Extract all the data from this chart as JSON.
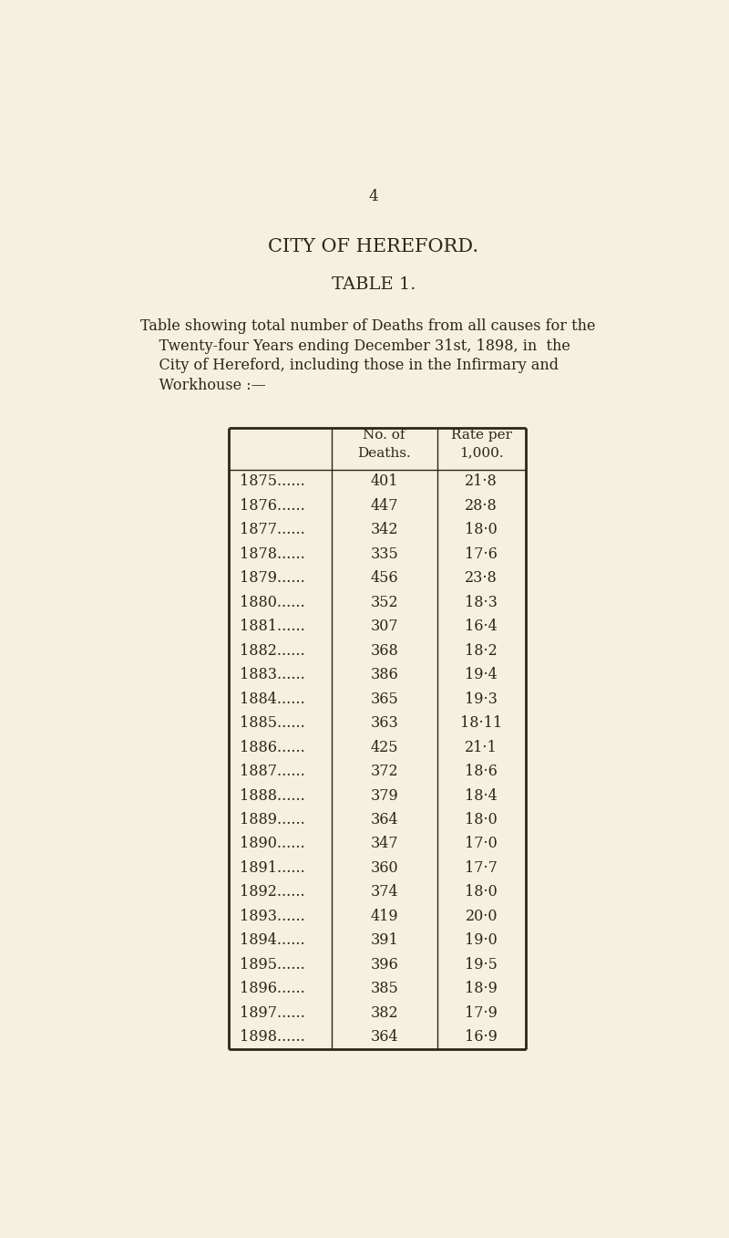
{
  "page_number": "4",
  "title1": "CITY OF HEREFORD.",
  "title2": "TABLE 1.",
  "desc_lines": [
    "Table showing total number of Deaths from all causes for the",
    "    Twenty-four Years ending December 31st, 1898, in  the",
    "    City of Hereford, including those in the Infirmary and",
    "    Workhouse :—"
  ],
  "col_header1": "No. of\nDeaths.",
  "col_header2": "Rate per\n1,000.",
  "rows": [
    [
      "1875......",
      "401",
      "21·8"
    ],
    [
      "1876......",
      "447",
      "28·8"
    ],
    [
      "1877......",
      "342",
      "18·0"
    ],
    [
      "1878......",
      "335",
      "17·6"
    ],
    [
      "1879......",
      "456",
      "23·8"
    ],
    [
      "1880......",
      "352",
      "18·3"
    ],
    [
      "1881......",
      "307",
      "16·4"
    ],
    [
      "1882......",
      "368",
      "18·2"
    ],
    [
      "1883......",
      "386",
      "19·4"
    ],
    [
      "1884......",
      "365",
      "19·3"
    ],
    [
      "1885......",
      "363",
      "18·11"
    ],
    [
      "1886......",
      "425",
      "21·1"
    ],
    [
      "1887......",
      "372",
      "18·6"
    ],
    [
      "1888......",
      "379",
      "18·4"
    ],
    [
      "1889......",
      "364",
      "18·0"
    ],
    [
      "1890......",
      "347",
      "17·0"
    ],
    [
      "1891......",
      "360",
      "17·7"
    ],
    [
      "1892......",
      "374",
      "18·0"
    ],
    [
      "1893......",
      "419",
      "20·0"
    ],
    [
      "1894......",
      "391",
      "19·0"
    ],
    [
      "1895......",
      "396",
      "19·5"
    ],
    [
      "1896......",
      "385",
      "18·9"
    ],
    [
      "1897......",
      "382",
      "17·9"
    ],
    [
      "1898......",
      "364",
      "16·9"
    ]
  ],
  "bg_color": "#f5f0e0",
  "text_color": "#2e2518",
  "border_color": "#2e2518",
  "font_size_page": 12,
  "font_size_title1": 15,
  "font_size_title2": 14,
  "font_size_desc": 11.5,
  "font_size_header": 11,
  "font_size_row": 11.5
}
